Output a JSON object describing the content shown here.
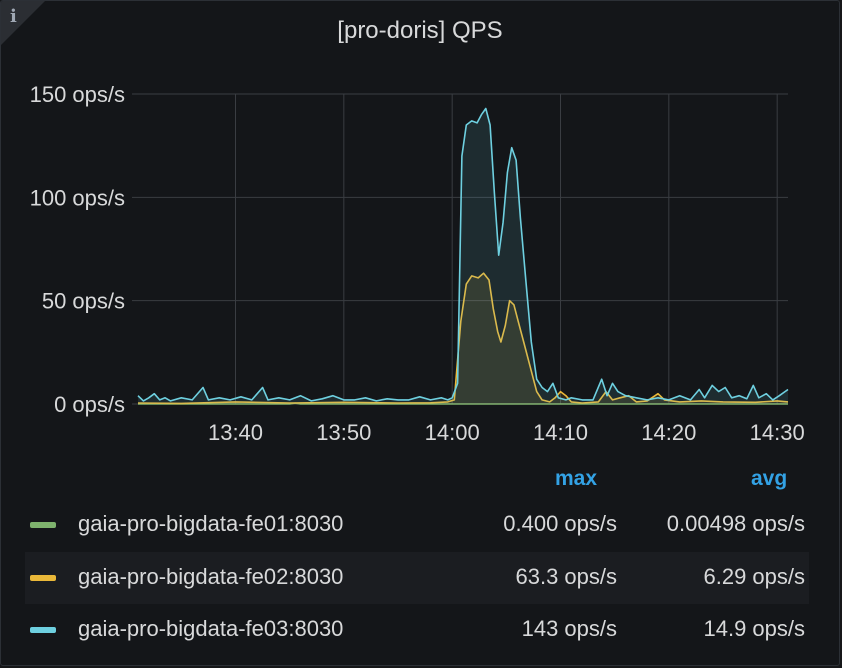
{
  "panel": {
    "title": "[pro-doris] QPS",
    "info_icon": "i"
  },
  "chart_data": {
    "type": "line",
    "title": "[pro-doris] QPS",
    "x_ticks": [
      "13:40",
      "13:50",
      "14:00",
      "14:10",
      "14:20",
      "14:30"
    ],
    "x_tick_minutes": [
      40,
      50,
      60,
      70,
      80,
      90
    ],
    "xlim_minutes": [
      31,
      91
    ],
    "y_ticks": [
      "0 ops/s",
      "50 ops/s",
      "100 ops/s",
      "150 ops/s"
    ],
    "y_tick_values": [
      0,
      50,
      100,
      150
    ],
    "ylim": [
      0,
      150
    ],
    "unit": "ops/s",
    "grid": true,
    "fill": true,
    "legend_position": "bottom",
    "series": [
      {
        "name": "gaia-pro-bigdata-fe01:8030",
        "color": "#7eb26d",
        "max": "0.400 ops/s",
        "avg": "0.00498 ops/s",
        "points": [
          [
            31,
            0
          ],
          [
            45,
            0
          ],
          [
            45.5,
            0.4
          ],
          [
            46,
            0
          ],
          [
            91,
            0
          ]
        ]
      },
      {
        "name": "gaia-pro-bigdata-fe02:8030",
        "color": "#eab839",
        "max": "63.3 ops/s",
        "avg": "6.29 ops/s",
        "points": [
          [
            31,
            0.5
          ],
          [
            35,
            0.3
          ],
          [
            40,
            1
          ],
          [
            45,
            0.5
          ],
          [
            50,
            0.8
          ],
          [
            55,
            0.5
          ],
          [
            58,
            0.6
          ],
          [
            59.6,
            1
          ],
          [
            60.2,
            2
          ],
          [
            60.8,
            40
          ],
          [
            61.3,
            58
          ],
          [
            61.8,
            62
          ],
          [
            62.4,
            61
          ],
          [
            62.9,
            63.3
          ],
          [
            63.4,
            60
          ],
          [
            63.8,
            46
          ],
          [
            64.2,
            35
          ],
          [
            64.5,
            30
          ],
          [
            64.9,
            38
          ],
          [
            65.3,
            50
          ],
          [
            65.7,
            48
          ],
          [
            66.1,
            40
          ],
          [
            66.6,
            30
          ],
          [
            67.2,
            18
          ],
          [
            67.8,
            6
          ],
          [
            68.3,
            2
          ],
          [
            69,
            1
          ],
          [
            69.5,
            3
          ],
          [
            70,
            6
          ],
          [
            70.5,
            4
          ],
          [
            71,
            1
          ],
          [
            72,
            0.5
          ],
          [
            73.5,
            1
          ],
          [
            74.2,
            6
          ],
          [
            74.8,
            2
          ],
          [
            75.5,
            3
          ],
          [
            76.3,
            4
          ],
          [
            77,
            1
          ],
          [
            78,
            1.5
          ],
          [
            79,
            5
          ],
          [
            79.6,
            2
          ],
          [
            81,
            1
          ],
          [
            83,
            1.5
          ],
          [
            85,
            1
          ],
          [
            88,
            0.8
          ],
          [
            90,
            1.5
          ],
          [
            91,
            1
          ]
        ]
      },
      {
        "name": "gaia-pro-bigdata-fe03:8030",
        "color": "#6ed0e0",
        "max": "143 ops/s",
        "avg": "14.9 ops/s",
        "points": [
          [
            31,
            4
          ],
          [
            31.5,
            1.5
          ],
          [
            32,
            3
          ],
          [
            32.5,
            5
          ],
          [
            33,
            2
          ],
          [
            33.5,
            3
          ],
          [
            34,
            1.5
          ],
          [
            35,
            3
          ],
          [
            36,
            2
          ],
          [
            37,
            8
          ],
          [
            37.5,
            2
          ],
          [
            38.5,
            3
          ],
          [
            39.5,
            2
          ],
          [
            40.5,
            3.5
          ],
          [
            41.5,
            2
          ],
          [
            42.5,
            8
          ],
          [
            43,
            2
          ],
          [
            44,
            3
          ],
          [
            45,
            2
          ],
          [
            46,
            4
          ],
          [
            47,
            1.5
          ],
          [
            48,
            2.5
          ],
          [
            49,
            4
          ],
          [
            50,
            2
          ],
          [
            51,
            2
          ],
          [
            52,
            3
          ],
          [
            53,
            1.5
          ],
          [
            54,
            2.5
          ],
          [
            55,
            2
          ],
          [
            56,
            2
          ],
          [
            57,
            3.5
          ],
          [
            58,
            2
          ],
          [
            59,
            3
          ],
          [
            59.6,
            2
          ],
          [
            60,
            3
          ],
          [
            60.5,
            10
          ],
          [
            60.9,
            120
          ],
          [
            61.3,
            135
          ],
          [
            61.8,
            137
          ],
          [
            62.3,
            136
          ],
          [
            62.7,
            140
          ],
          [
            63.1,
            143
          ],
          [
            63.5,
            135
          ],
          [
            63.9,
            102
          ],
          [
            64.3,
            72
          ],
          [
            64.7,
            88
          ],
          [
            65.1,
            112
          ],
          [
            65.5,
            124
          ],
          [
            65.9,
            118
          ],
          [
            66.3,
            90
          ],
          [
            66.8,
            60
          ],
          [
            67.3,
            30
          ],
          [
            67.8,
            12
          ],
          [
            68.3,
            8
          ],
          [
            68.8,
            6
          ],
          [
            69.3,
            10
          ],
          [
            69.8,
            3
          ],
          [
            70.5,
            2
          ],
          [
            71,
            3
          ],
          [
            72,
            2
          ],
          [
            73,
            2
          ],
          [
            73.8,
            12
          ],
          [
            74.3,
            4
          ],
          [
            74.8,
            10
          ],
          [
            75.3,
            6
          ],
          [
            76,
            4
          ],
          [
            77,
            3
          ],
          [
            78,
            2
          ],
          [
            79,
            3
          ],
          [
            80,
            2
          ],
          [
            81,
            4
          ],
          [
            82,
            2
          ],
          [
            82.8,
            7
          ],
          [
            83.3,
            3
          ],
          [
            84,
            9
          ],
          [
            84.6,
            6
          ],
          [
            85.2,
            8
          ],
          [
            85.8,
            3
          ],
          [
            86.5,
            4
          ],
          [
            87.2,
            2.5
          ],
          [
            87.8,
            9
          ],
          [
            88.3,
            3
          ],
          [
            89,
            5
          ],
          [
            89.6,
            2
          ],
          [
            90.2,
            4
          ],
          [
            91,
            7
          ]
        ]
      }
    ]
  },
  "legend": {
    "max_header": "max",
    "avg_header": "avg"
  }
}
